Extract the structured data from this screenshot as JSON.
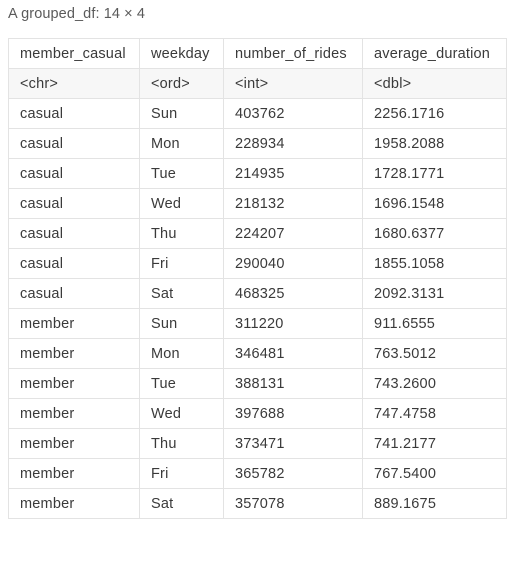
{
  "caption": "A grouped_df: 14 × 4",
  "columns": [
    {
      "name": "member_casual",
      "type": "<chr>"
    },
    {
      "name": "weekday",
      "type": "<ord>"
    },
    {
      "name": "number_of_rides",
      "type": "<int>"
    },
    {
      "name": "average_duration",
      "type": "<dbl>"
    }
  ],
  "rows": [
    [
      "casual",
      "Sun",
      "403762",
      "2256.1716"
    ],
    [
      "casual",
      "Mon",
      "228934",
      "1958.2088"
    ],
    [
      "casual",
      "Tue",
      "214935",
      "1728.1771"
    ],
    [
      "casual",
      "Wed",
      "218132",
      "1696.1548"
    ],
    [
      "casual",
      "Thu",
      "224207",
      "1680.6377"
    ],
    [
      "casual",
      "Fri",
      "290040",
      "1855.1058"
    ],
    [
      "casual",
      "Sat",
      "468325",
      "2092.3131"
    ],
    [
      "member",
      "Sun",
      "311220",
      "911.6555"
    ],
    [
      "member",
      "Mon",
      "346481",
      "763.5012"
    ],
    [
      "member",
      "Tue",
      "388131",
      "743.2600"
    ],
    [
      "member",
      "Wed",
      "397688",
      "747.4758"
    ],
    [
      "member",
      "Thu",
      "373471",
      "741.2177"
    ],
    [
      "member",
      "Fri",
      "365782",
      "767.5400"
    ],
    [
      "member",
      "Sat",
      "357078",
      "889.1675"
    ]
  ]
}
